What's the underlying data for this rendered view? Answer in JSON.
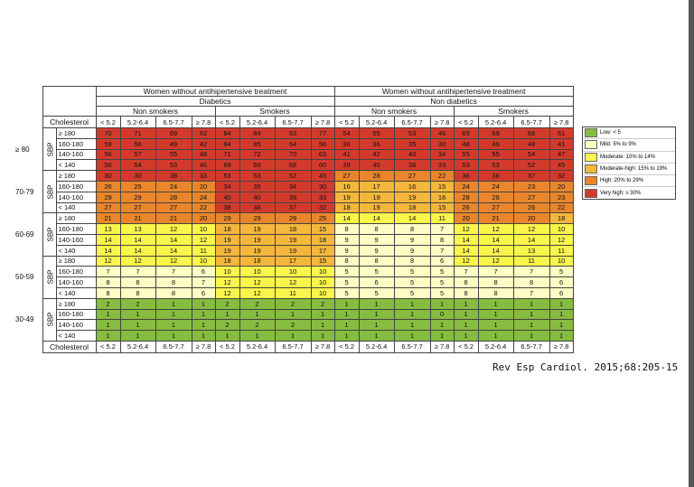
{
  "header": {
    "groups": [
      {
        "title": "Women without antihipertensive treatment",
        "subtitle": "Diabetics"
      },
      {
        "title": "Women without antihipertensive treatment",
        "subtitle": "Non diabetics"
      }
    ],
    "smoking": [
      "Non smokers",
      "Smokers"
    ],
    "cholesterol_label": "Cholesterol",
    "cholesterol": [
      "< 5.2",
      "5.2-6.4",
      "6.5-7.7",
      "≥ 7.8"
    ],
    "sbp_label": "SBP"
  },
  "age_groups": [
    {
      "age": "≥ 80",
      "rows": [
        {
          "sbp": "≥ 180",
          "values": [
            70,
            71,
            69,
            62,
            84,
            84,
            83,
            77,
            54,
            55,
            53,
            46,
            69,
            69,
            68,
            61
          ]
        },
        {
          "sbp": "160-180",
          "values": [
            59,
            56,
            49,
            42,
            84,
            85,
            64,
            56,
            36,
            36,
            35,
            30,
            48,
            49,
            48,
            41
          ]
        },
        {
          "sbp": "140-160",
          "values": [
            56,
            57,
            55,
            48,
            71,
            72,
            70,
            63,
            41,
            42,
            40,
            34,
            55,
            55,
            54,
            47
          ]
        },
        {
          "sbp": "< 140",
          "values": [
            56,
            54,
            53,
            46,
            69,
            69,
            68,
            60,
            39,
            40,
            38,
            33,
            53,
            53,
            52,
            45
          ]
        }
      ]
    },
    {
      "age": "70-79",
      "rows": [
        {
          "sbp": "≥ 180",
          "values": [
            30,
            30,
            38,
            33,
            53,
            53,
            52,
            45,
            27,
            28,
            27,
            22,
            36,
            36,
            37,
            32
          ]
        },
        {
          "sbp": "160-180",
          "values": [
            26,
            25,
            24,
            20,
            34,
            35,
            34,
            30,
            16,
            17,
            16,
            15,
            24,
            24,
            23,
            20
          ]
        },
        {
          "sbp": "140-160",
          "values": [
            29,
            29,
            28,
            24,
            40,
            40,
            39,
            33,
            19,
            19,
            19,
            16,
            28,
            28,
            27,
            23
          ]
        },
        {
          "sbp": "< 140",
          "values": [
            27,
            27,
            27,
            22,
            38,
            38,
            37,
            32,
            18,
            19,
            18,
            15,
            26,
            27,
            26,
            22
          ]
        }
      ]
    },
    {
      "age": "60-69",
      "rows": [
        {
          "sbp": "≥ 180",
          "values": [
            21,
            21,
            21,
            20,
            29,
            29,
            29,
            25,
            14,
            14,
            14,
            11,
            20,
            21,
            20,
            18
          ]
        },
        {
          "sbp": "160-180",
          "values": [
            13,
            13,
            12,
            10,
            18,
            19,
            18,
            15,
            8,
            8,
            8,
            7,
            12,
            12,
            12,
            10
          ]
        },
        {
          "sbp": "140-160",
          "values": [
            14,
            14,
            14,
            12,
            19,
            19,
            19,
            18,
            9,
            9,
            9,
            8,
            14,
            14,
            14,
            12
          ]
        },
        {
          "sbp": "< 140",
          "values": [
            14,
            14,
            14,
            11,
            19,
            19,
            19,
            17,
            9,
            9,
            9,
            7,
            14,
            14,
            13,
            11
          ]
        }
      ]
    },
    {
      "age": "50-59",
      "rows": [
        {
          "sbp": "≥ 180",
          "values": [
            12,
            12,
            12,
            10,
            18,
            18,
            17,
            15,
            8,
            8,
            8,
            6,
            12,
            12,
            11,
            10
          ]
        },
        {
          "sbp": "160-180",
          "values": [
            7,
            7,
            7,
            6,
            10,
            10,
            10,
            10,
            5,
            5,
            5,
            5,
            7,
            7,
            7,
            5
          ]
        },
        {
          "sbp": "140-160",
          "values": [
            8,
            8,
            8,
            7,
            12,
            12,
            12,
            10,
            5,
            6,
            5,
            5,
            8,
            8,
            8,
            6
          ]
        },
        {
          "sbp": "< 140",
          "values": [
            8,
            8,
            8,
            6,
            12,
            12,
            11,
            10,
            5,
            5,
            5,
            5,
            8,
            8,
            7,
            6
          ]
        }
      ]
    },
    {
      "age": "30-49",
      "rows": [
        {
          "sbp": "≥ 180",
          "values": [
            2,
            2,
            1,
            1,
            2,
            2,
            2,
            2,
            1,
            1,
            1,
            1,
            1,
            1,
            1,
            1
          ]
        },
        {
          "sbp": "160-180",
          "values": [
            1,
            1,
            1,
            1,
            1,
            1,
            1,
            1,
            1,
            1,
            1,
            0,
            1,
            1,
            1,
            1
          ]
        },
        {
          "sbp": "140-160",
          "values": [
            1,
            1,
            1,
            1,
            2,
            2,
            2,
            1,
            1,
            1,
            1,
            1,
            1,
            1,
            1,
            1
          ]
        },
        {
          "sbp": "< 140",
          "values": [
            1,
            1,
            1,
            1,
            1,
            1,
            1,
            1,
            1,
            1,
            1,
            1,
            1,
            1,
            1,
            1
          ]
        }
      ]
    }
  ],
  "legend": [
    {
      "label": "Low: < 5",
      "color": "#86bc3f"
    },
    {
      "label": "Mild: 5% to 9%",
      "min": 5,
      "color": "#fdfdc4"
    },
    {
      "label": "Moderate: 10% to 14%",
      "min": 10,
      "color": "#f9f54a"
    },
    {
      "label": "Moderate-high: 15% to 19%",
      "min": 15,
      "color": "#f5b73b"
    },
    {
      "label": "High: 20% to 29%",
      "min": 20,
      "color": "#e9862c"
    },
    {
      "label": "Very high: ≥ 30%",
      "min": 30,
      "color": "#d33a2c"
    }
  ],
  "citation": "Rev Esp Cardiol. 2015;68:205-15"
}
